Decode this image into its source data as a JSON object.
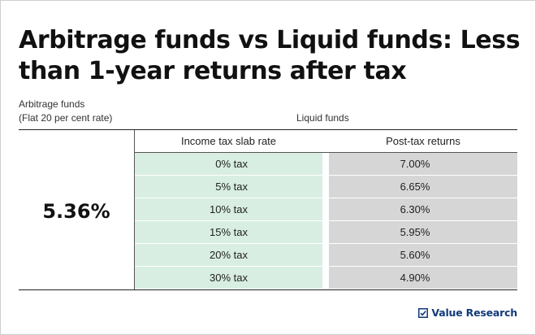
{
  "title": "Arbitrage funds vs Liquid funds: Less than 1-year returns after tax",
  "arbitrage": {
    "label_line1": "Arbitrage funds",
    "label_line2": "(Flat 20 per cent rate)",
    "value": "5.36%"
  },
  "liquid": {
    "label": "Liquid funds",
    "headers": {
      "slab": "Income tax slab rate",
      "returns": "Post-tax returns"
    },
    "rows": [
      {
        "slab": "0% tax",
        "returns": "7.00%"
      },
      {
        "slab": "5% tax",
        "returns": "6.65%"
      },
      {
        "slab": "10% tax",
        "returns": "6.30%"
      },
      {
        "slab": "15% tax",
        "returns": "5.95%"
      },
      {
        "slab": "20% tax",
        "returns": "5.60%"
      },
      {
        "slab": "30% tax",
        "returns": "4.90%"
      }
    ]
  },
  "brand": {
    "name": "Value Research",
    "color": "#123a7a"
  },
  "colors": {
    "slab_fill": "#d8eee2",
    "returns_fill": "#d6d6d6",
    "rule": "#222222"
  }
}
